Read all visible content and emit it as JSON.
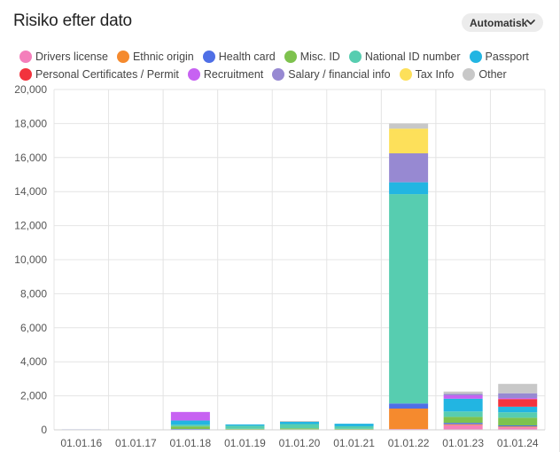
{
  "header": {
    "title": "Risiko efter dato",
    "dropdown_label": "Automatisk",
    "dropdown_icon": "chevron-down-icon"
  },
  "chart_data": {
    "type": "bar",
    "stacked": true,
    "title": "",
    "xlabel": "",
    "ylabel": "",
    "ylim": [
      0,
      20000
    ],
    "yticks": [
      0,
      2000,
      4000,
      6000,
      8000,
      10000,
      12000,
      14000,
      16000,
      18000,
      20000
    ],
    "ytick_labels": [
      "0",
      "2,000",
      "4,000",
      "6,000",
      "8,000",
      "10,000",
      "12,000",
      "14,000",
      "16,000",
      "18,000",
      "20,000"
    ],
    "grid": true,
    "legend_position": "top",
    "categories": [
      "01.01.16",
      "01.01.17",
      "01.01.18",
      "01.01.19",
      "01.01.20",
      "01.01.21",
      "01.01.22",
      "01.01.23",
      "01.01.24"
    ],
    "series": [
      {
        "name": "Drivers license",
        "color": "#f47fbb",
        "values": [
          0,
          0,
          20,
          0,
          30,
          0,
          50,
          280,
          150
        ]
      },
      {
        "name": "Ethnic origin",
        "color": "#f58a2e",
        "values": [
          0,
          0,
          10,
          0,
          0,
          0,
          1200,
          50,
          50
        ]
      },
      {
        "name": "Health card",
        "color": "#4f6fe6",
        "values": [
          30,
          0,
          20,
          0,
          0,
          0,
          300,
          80,
          60
        ]
      },
      {
        "name": "Misc. ID",
        "color": "#7ec24e",
        "values": [
          0,
          0,
          150,
          60,
          60,
          60,
          0,
          350,
          450
        ]
      },
      {
        "name": "National ID number",
        "color": "#57cdb0",
        "values": [
          0,
          0,
          100,
          180,
          250,
          150,
          12300,
          320,
          320
        ]
      },
      {
        "name": "Passport",
        "color": "#22b5e2",
        "values": [
          0,
          0,
          250,
          80,
          130,
          150,
          700,
          750,
          330
        ]
      },
      {
        "name": "Personal Certificates / Permit",
        "color": "#f2333d",
        "values": [
          0,
          0,
          0,
          0,
          0,
          0,
          0,
          0,
          450
        ]
      },
      {
        "name": "Recruitment",
        "color": "#c762f2",
        "values": [
          0,
          0,
          500,
          0,
          0,
          0,
          0,
          200,
          60
        ]
      },
      {
        "name": "Salary / financial info",
        "color": "#9789d2",
        "values": [
          0,
          0,
          0,
          0,
          0,
          0,
          1700,
          80,
          280
        ]
      },
      {
        "name": "Tax Info",
        "color": "#fde05a",
        "values": [
          0,
          0,
          0,
          0,
          0,
          0,
          1450,
          0,
          0
        ]
      },
      {
        "name": "Other",
        "color": "#c8c8c8",
        "values": [
          0,
          0,
          0,
          0,
          50,
          0,
          300,
          140,
          550
        ]
      }
    ]
  }
}
